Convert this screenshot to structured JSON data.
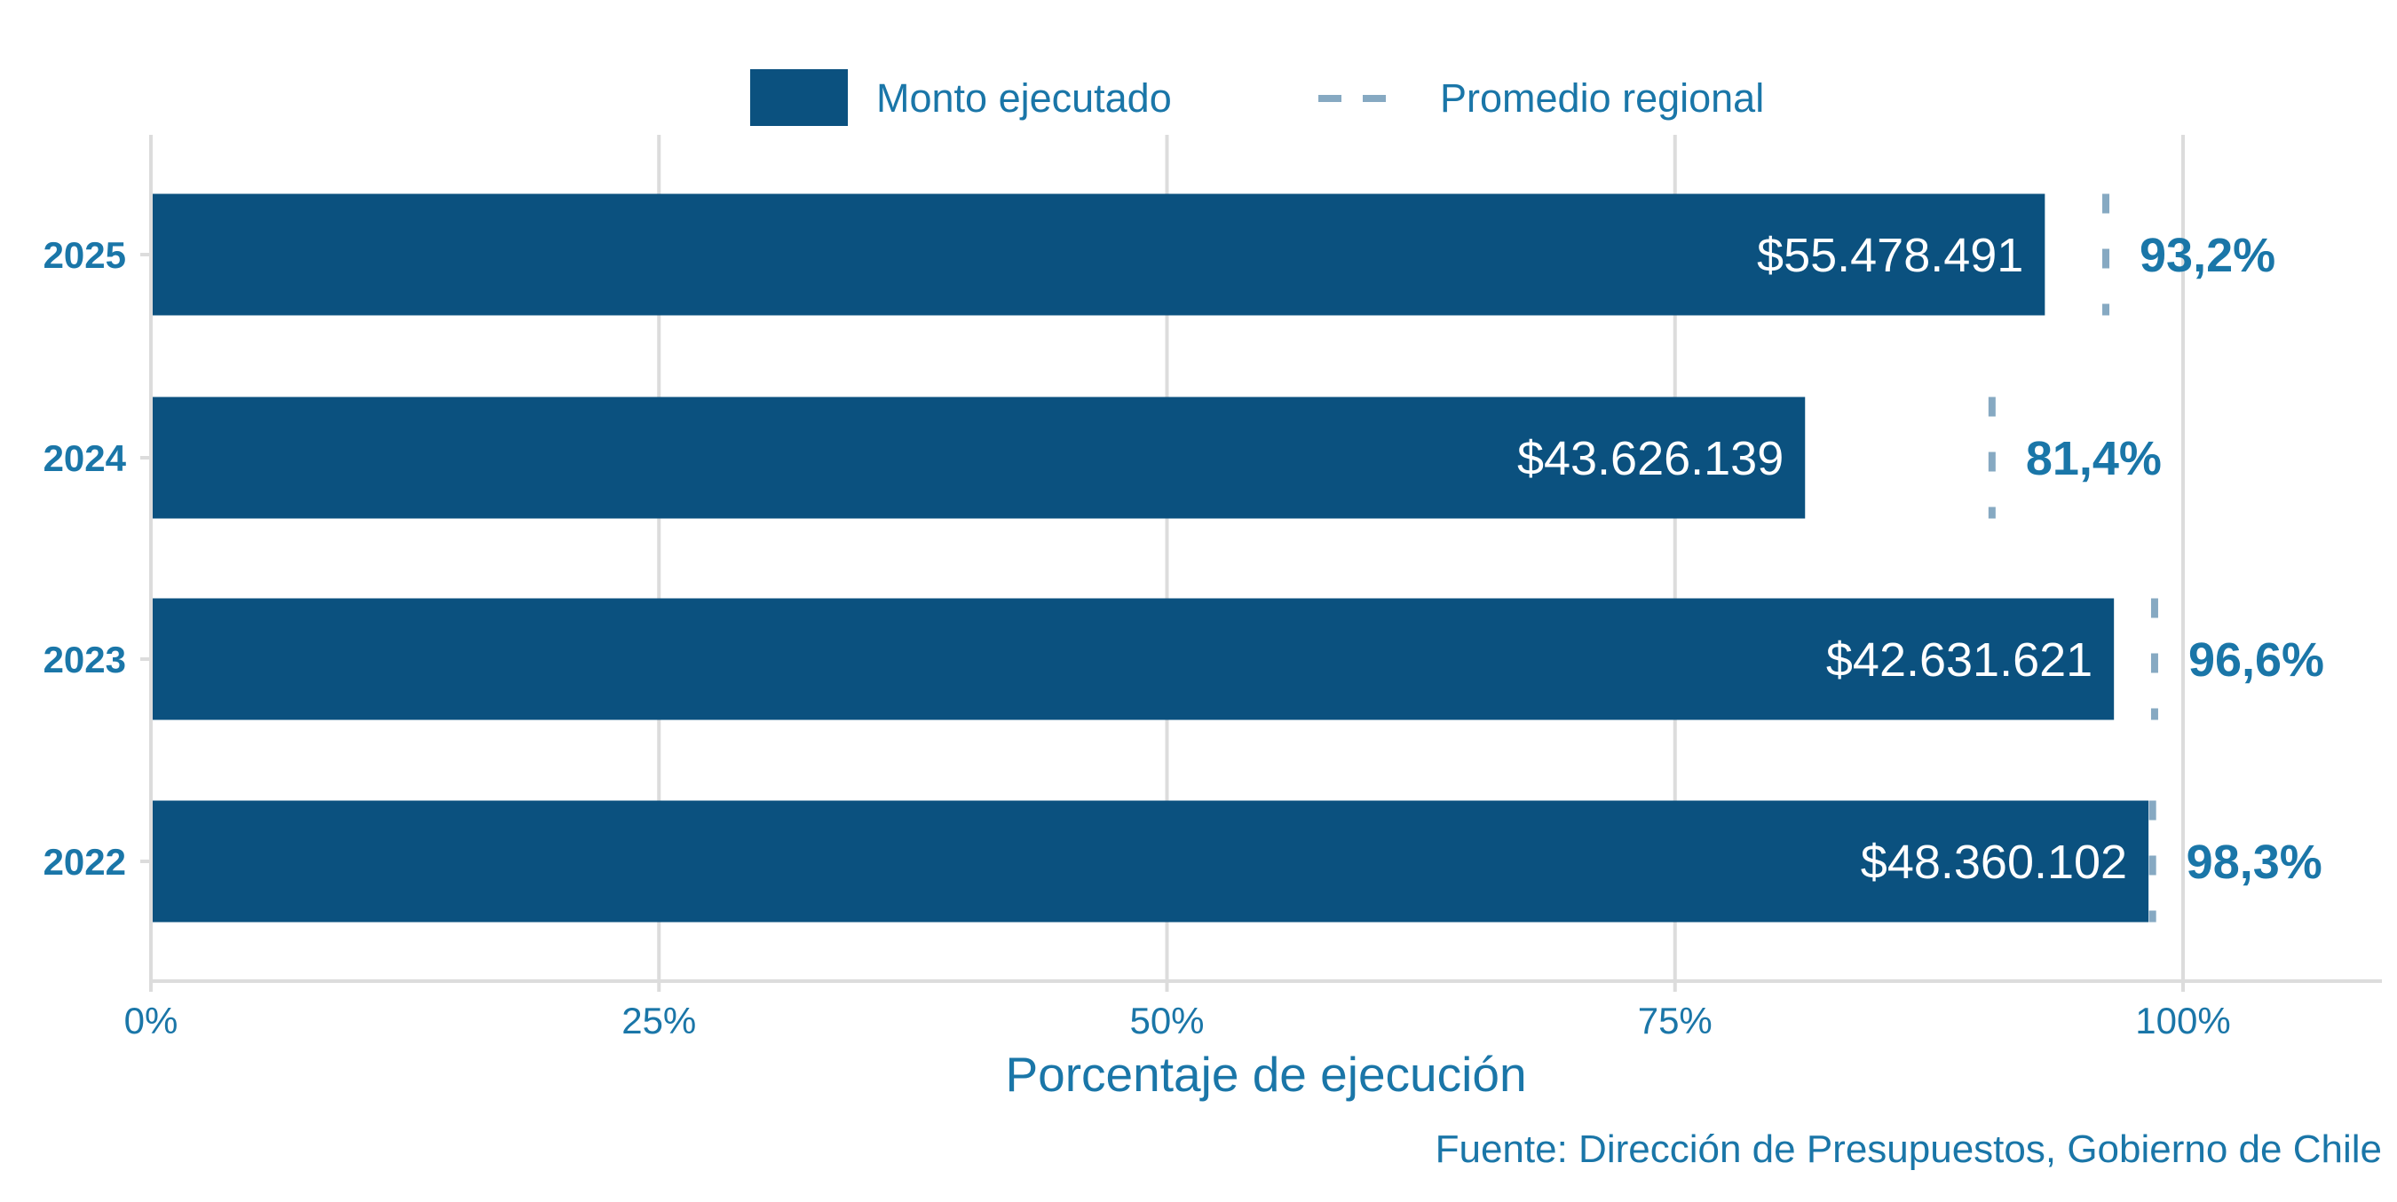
{
  "chart_data": {
    "type": "bar",
    "orientation": "horizontal",
    "categories": [
      "2025",
      "2024",
      "2023",
      "2022"
    ],
    "series": [
      {
        "name": "Monto ejecutado",
        "values": [
          93.2,
          81.4,
          96.6,
          98.3
        ],
        "amount_labels": [
          "$55.478.491",
          "$43.626.139",
          "$42.631.621",
          "$48.360.102"
        ],
        "pct_labels": [
          "93,2%",
          "81,4%",
          "96,6%",
          "98,3%"
        ]
      },
      {
        "name": "Promedio regional",
        "values": [
          96.2,
          90.6,
          98.6,
          98.5
        ],
        "style": "dashed"
      }
    ],
    "title": "",
    "xlabel": "Porcentaje de ejecución",
    "ylabel": "",
    "xlim": [
      0,
      109.8
    ],
    "xticks": [
      0,
      25,
      50,
      75,
      100
    ],
    "xtick_labels": [
      "0%",
      "25%",
      "50%",
      "75%",
      "100%"
    ],
    "grid": true,
    "legend_position": "top",
    "caption": "Fuente: Dirección de Presupuestos, Gobierno de Chile"
  },
  "colors": {
    "bar": "#0b517f",
    "dash": "#86a9c2",
    "text": "#1a76a8",
    "grid": "#dcdcdc"
  }
}
